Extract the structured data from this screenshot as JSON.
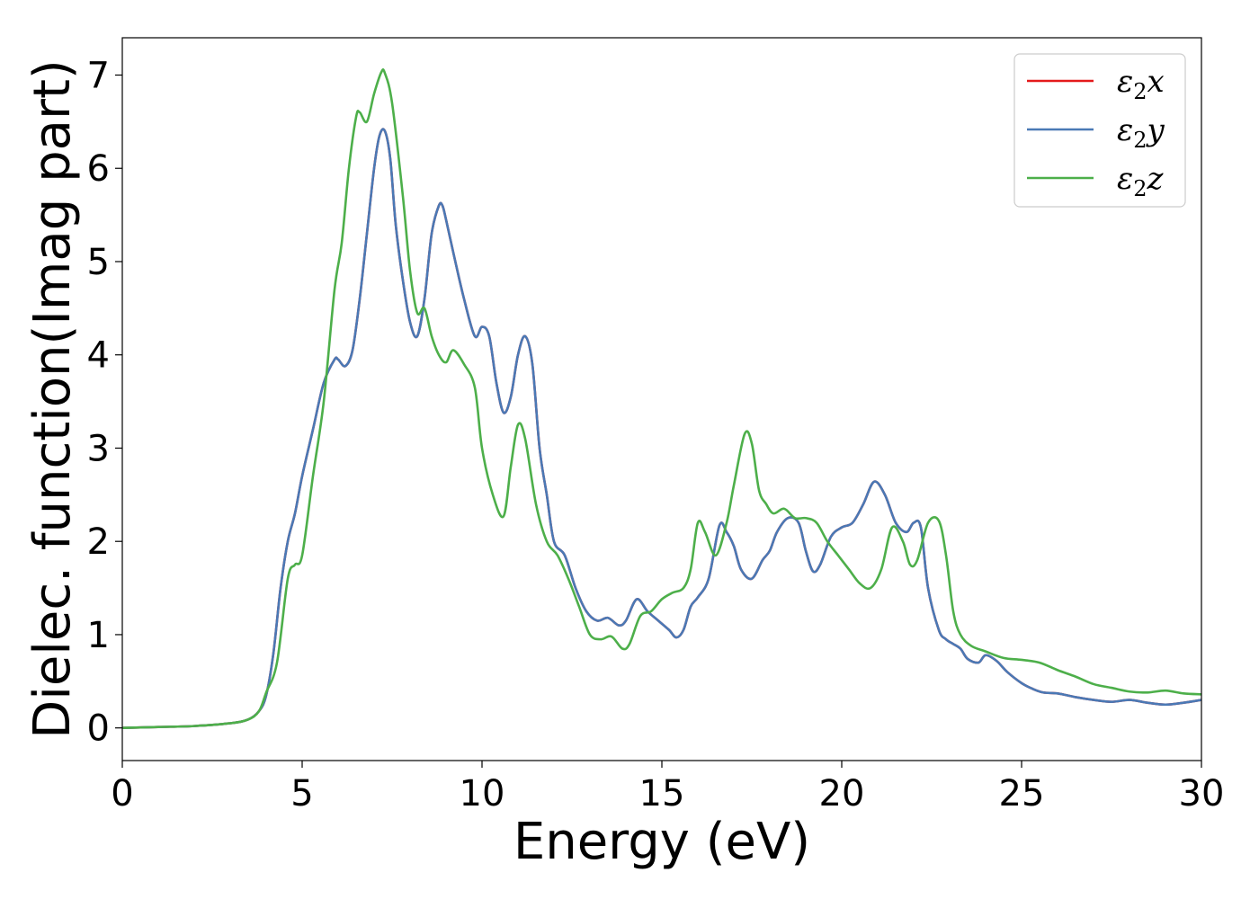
{
  "chart_data": {
    "type": "line",
    "xlabel": "Energy (eV)",
    "ylabel": "Dielec. function(Imag part)",
    "xlim": [
      0,
      30
    ],
    "ylim": [
      -0.35,
      7.4
    ],
    "xticks": [
      0,
      5,
      10,
      15,
      20,
      25,
      30
    ],
    "yticks": [
      0,
      1,
      2,
      3,
      4,
      5,
      6,
      7
    ],
    "grid": false,
    "legend_position": "top-right",
    "series": [
      {
        "name": "ε₂x",
        "legend_base": "ε",
        "legend_sub": "2",
        "legend_suffix": "x",
        "color": "#e41a1c",
        "x": [
          0,
          1,
          2,
          3,
          3.5,
          3.8,
          4.0,
          4.2,
          4.4,
          4.6,
          4.8,
          5.0,
          5.3,
          5.6,
          5.9,
          6.0,
          6.2,
          6.4,
          6.6,
          6.8,
          7.0,
          7.15,
          7.3,
          7.45,
          7.6,
          7.8,
          8.0,
          8.2,
          8.4,
          8.6,
          8.8,
          8.9,
          9.0,
          9.2,
          9.5,
          9.8,
          10.0,
          10.2,
          10.4,
          10.6,
          10.8,
          11.0,
          11.2,
          11.4,
          11.6,
          11.8,
          12.0,
          12.3,
          12.6,
          12.9,
          13.2,
          13.5,
          13.8,
          14.0,
          14.3,
          14.6,
          14.9,
          15.2,
          15.4,
          15.6,
          15.8,
          16.0,
          16.3,
          16.6,
          16.8,
          17.0,
          17.2,
          17.5,
          17.8,
          18.0,
          18.2,
          18.5,
          18.8,
          19.0,
          19.2,
          19.4,
          19.7,
          20.0,
          20.3,
          20.6,
          20.9,
          21.2,
          21.5,
          21.8,
          22.0,
          22.2,
          22.4,
          22.7,
          22.9,
          23.1,
          23.3,
          23.5,
          23.8,
          24.0,
          24.3,
          24.6,
          25.0,
          25.3,
          25.6,
          26.0,
          26.5,
          27.0,
          27.5,
          28.0,
          28.5,
          29.0,
          29.5,
          30.0
        ],
        "y": [
          0.0,
          0.01,
          0.02,
          0.05,
          0.09,
          0.18,
          0.35,
          0.8,
          1.5,
          2.0,
          2.3,
          2.7,
          3.2,
          3.7,
          3.95,
          3.95,
          3.88,
          4.05,
          4.6,
          5.3,
          6.0,
          6.35,
          6.4,
          6.1,
          5.4,
          4.8,
          4.35,
          4.2,
          4.6,
          5.3,
          5.6,
          5.6,
          5.45,
          5.1,
          4.6,
          4.2,
          4.3,
          4.2,
          3.7,
          3.38,
          3.55,
          4.0,
          4.2,
          3.9,
          3.0,
          2.5,
          2.0,
          1.85,
          1.5,
          1.25,
          1.15,
          1.18,
          1.1,
          1.15,
          1.38,
          1.25,
          1.15,
          1.05,
          0.97,
          1.05,
          1.3,
          1.4,
          1.6,
          2.17,
          2.1,
          1.95,
          1.7,
          1.6,
          1.8,
          1.9,
          2.1,
          2.25,
          2.2,
          1.9,
          1.68,
          1.75,
          2.05,
          2.15,
          2.2,
          2.4,
          2.64,
          2.5,
          2.2,
          2.1,
          2.2,
          2.15,
          1.5,
          1.05,
          0.95,
          0.9,
          0.85,
          0.74,
          0.7,
          0.78,
          0.72,
          0.6,
          0.48,
          0.42,
          0.38,
          0.37,
          0.33,
          0.3,
          0.28,
          0.3,
          0.27,
          0.25,
          0.27,
          0.3
        ]
      },
      {
        "name": "ε₂y",
        "legend_base": "ε",
        "legend_sub": "2",
        "legend_suffix": "y",
        "color": "#4a79b5",
        "x": [
          0,
          1,
          2,
          3,
          3.5,
          3.8,
          4.0,
          4.2,
          4.4,
          4.6,
          4.8,
          5.0,
          5.3,
          5.6,
          5.9,
          6.0,
          6.2,
          6.4,
          6.6,
          6.8,
          7.0,
          7.15,
          7.3,
          7.45,
          7.6,
          7.8,
          8.0,
          8.2,
          8.4,
          8.6,
          8.8,
          8.9,
          9.0,
          9.2,
          9.5,
          9.8,
          10.0,
          10.2,
          10.4,
          10.6,
          10.8,
          11.0,
          11.2,
          11.4,
          11.6,
          11.8,
          12.0,
          12.3,
          12.6,
          12.9,
          13.2,
          13.5,
          13.8,
          14.0,
          14.3,
          14.6,
          14.9,
          15.2,
          15.4,
          15.6,
          15.8,
          16.0,
          16.3,
          16.6,
          16.8,
          17.0,
          17.2,
          17.5,
          17.8,
          18.0,
          18.2,
          18.5,
          18.8,
          19.0,
          19.2,
          19.4,
          19.7,
          20.0,
          20.3,
          20.6,
          20.9,
          21.2,
          21.5,
          21.8,
          22.0,
          22.2,
          22.4,
          22.7,
          22.9,
          23.1,
          23.3,
          23.5,
          23.8,
          24.0,
          24.3,
          24.6,
          25.0,
          25.3,
          25.6,
          26.0,
          26.5,
          27.0,
          27.5,
          28.0,
          28.5,
          29.0,
          29.5,
          30.0
        ],
        "y": [
          0.0,
          0.01,
          0.02,
          0.05,
          0.09,
          0.18,
          0.35,
          0.8,
          1.5,
          2.0,
          2.3,
          2.7,
          3.2,
          3.7,
          3.95,
          3.95,
          3.88,
          4.05,
          4.6,
          5.3,
          6.0,
          6.35,
          6.4,
          6.1,
          5.4,
          4.8,
          4.35,
          4.2,
          4.6,
          5.3,
          5.6,
          5.6,
          5.45,
          5.1,
          4.6,
          4.2,
          4.3,
          4.2,
          3.7,
          3.38,
          3.55,
          4.0,
          4.2,
          3.9,
          3.0,
          2.5,
          2.0,
          1.85,
          1.5,
          1.25,
          1.15,
          1.18,
          1.1,
          1.15,
          1.38,
          1.25,
          1.15,
          1.05,
          0.97,
          1.05,
          1.3,
          1.4,
          1.6,
          2.17,
          2.1,
          1.95,
          1.7,
          1.6,
          1.8,
          1.9,
          2.1,
          2.25,
          2.2,
          1.9,
          1.68,
          1.75,
          2.05,
          2.15,
          2.2,
          2.4,
          2.64,
          2.5,
          2.2,
          2.1,
          2.2,
          2.15,
          1.5,
          1.05,
          0.95,
          0.9,
          0.85,
          0.74,
          0.7,
          0.78,
          0.72,
          0.6,
          0.48,
          0.42,
          0.38,
          0.37,
          0.33,
          0.3,
          0.28,
          0.3,
          0.27,
          0.25,
          0.27,
          0.3
        ]
      },
      {
        "name": "ε₂z",
        "legend_base": "ε",
        "legend_sub": "2",
        "legend_suffix": "z",
        "color": "#4daf4a",
        "x": [
          0,
          1,
          2,
          3,
          3.5,
          3.8,
          4.0,
          4.3,
          4.6,
          4.8,
          5.0,
          5.3,
          5.6,
          5.9,
          6.1,
          6.3,
          6.5,
          6.6,
          6.8,
          7.0,
          7.2,
          7.3,
          7.5,
          7.8,
          8.0,
          8.2,
          8.4,
          8.6,
          8.8,
          9.0,
          9.2,
          9.5,
          9.8,
          10.0,
          10.3,
          10.6,
          10.8,
          11.0,
          11.2,
          11.5,
          11.8,
          12.1,
          12.4,
          12.7,
          13.0,
          13.3,
          13.6,
          13.9,
          14.1,
          14.4,
          14.7,
          15.0,
          15.3,
          15.6,
          15.8,
          16.0,
          16.2,
          16.5,
          16.8,
          17.0,
          17.3,
          17.5,
          17.7,
          17.9,
          18.1,
          18.4,
          18.7,
          19.0,
          19.3,
          19.6,
          19.9,
          20.2,
          20.5,
          20.8,
          21.1,
          21.4,
          21.7,
          21.9,
          22.1,
          22.4,
          22.7,
          22.9,
          23.1,
          23.3,
          23.6,
          24.0,
          24.5,
          25.0,
          25.5,
          26.0,
          26.5,
          27.0,
          27.5,
          28.0,
          28.5,
          29.0,
          29.5,
          30.0
        ],
        "y": [
          0.0,
          0.01,
          0.02,
          0.05,
          0.09,
          0.18,
          0.38,
          0.7,
          1.6,
          1.75,
          1.85,
          2.7,
          3.5,
          4.7,
          5.2,
          6.0,
          6.55,
          6.6,
          6.5,
          6.8,
          7.03,
          7.02,
          6.7,
          5.7,
          4.9,
          4.45,
          4.5,
          4.2,
          4.0,
          3.92,
          4.05,
          3.9,
          3.65,
          3.0,
          2.5,
          2.27,
          2.8,
          3.25,
          3.1,
          2.4,
          2.0,
          1.85,
          1.6,
          1.3,
          1.0,
          0.95,
          0.98,
          0.85,
          0.9,
          1.2,
          1.25,
          1.38,
          1.45,
          1.5,
          1.7,
          2.2,
          2.1,
          1.85,
          2.2,
          2.6,
          3.15,
          3.05,
          2.55,
          2.4,
          2.3,
          2.35,
          2.25,
          2.25,
          2.2,
          2.0,
          1.85,
          1.7,
          1.55,
          1.5,
          1.7,
          2.15,
          2.0,
          1.75,
          1.8,
          2.2,
          2.22,
          1.85,
          1.25,
          1.0,
          0.88,
          0.82,
          0.75,
          0.73,
          0.7,
          0.62,
          0.55,
          0.47,
          0.43,
          0.39,
          0.38,
          0.4,
          0.37,
          0.36
        ]
      }
    ]
  }
}
